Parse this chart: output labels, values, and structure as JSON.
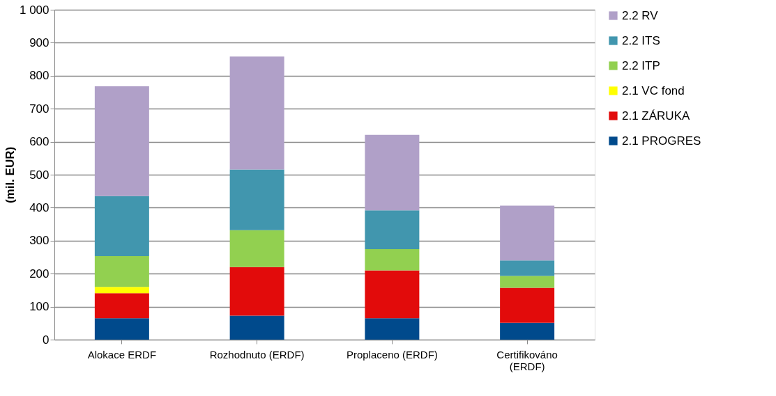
{
  "chart_data": {
    "type": "bar",
    "stacked": true,
    "ylabel": "(mil. EUR)",
    "categories": [
      "Alokace ERDF",
      "Rozhodnuto (ERDF)",
      "Proplaceno (ERDF)",
      "Certifikováno (ERDF)"
    ],
    "series": [
      {
        "name": "2.1 PROGRES",
        "color": "#004a8c",
        "values": [
          65,
          73,
          65,
          51
        ]
      },
      {
        "name": "2.1 ZÁRUKA",
        "color": "#e20b0b",
        "values": [
          76,
          147,
          145,
          106
        ]
      },
      {
        "name": "2.1 VC fond",
        "color": "#ffff00",
        "values": [
          19,
          0,
          0,
          0
        ]
      },
      {
        "name": "2.2 ITP",
        "color": "#92d050",
        "values": [
          93,
          112,
          64,
          36
        ]
      },
      {
        "name": "2.2 ITS",
        "color": "#4196ae",
        "values": [
          182,
          184,
          118,
          47
        ]
      },
      {
        "name": "2.2 RV",
        "color": "#b0a0c8",
        "values": [
          333,
          342,
          229,
          166
        ]
      }
    ],
    "ylim": [
      0,
      1000
    ],
    "yticks": [
      0,
      100,
      200,
      300,
      400,
      500,
      600,
      700,
      800,
      900,
      {
        "value": 1000,
        "label": "1 000"
      }
    ],
    "grid": "y",
    "legend": "right"
  }
}
